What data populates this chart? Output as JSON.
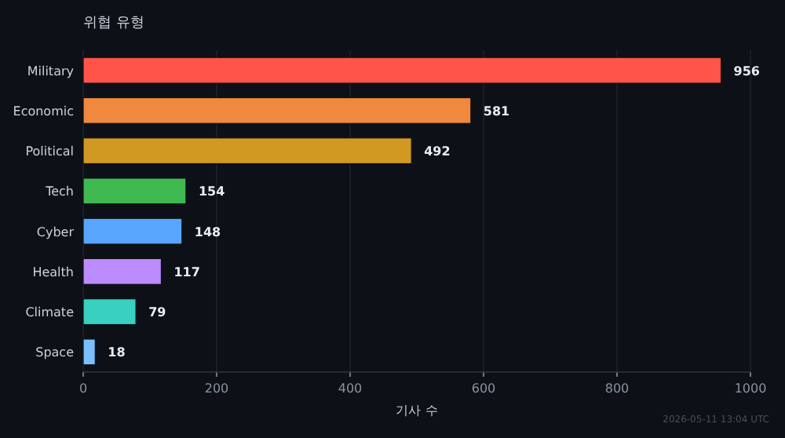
{
  "chart_data": {
    "type": "bar",
    "orientation": "horizontal",
    "title": "위협 유형",
    "xlabel": "기사 수",
    "categories": [
      "Military",
      "Economic",
      "Political",
      "Tech",
      "Cyber",
      "Health",
      "Climate",
      "Space"
    ],
    "values": [
      956,
      581,
      492,
      154,
      148,
      117,
      79,
      18
    ],
    "colors": [
      "#ff5449",
      "#f0883e",
      "#d29922",
      "#3fb950",
      "#58a6ff",
      "#bc8cff",
      "#39d0c0",
      "#79c0ff"
    ],
    "xlim": [
      0,
      1000
    ],
    "xticks": [
      0,
      200,
      400,
      600,
      800,
      1000
    ],
    "grid": "x",
    "data_labels": true,
    "annotations": [
      "2026-05-11 13:04 UTC"
    ]
  }
}
